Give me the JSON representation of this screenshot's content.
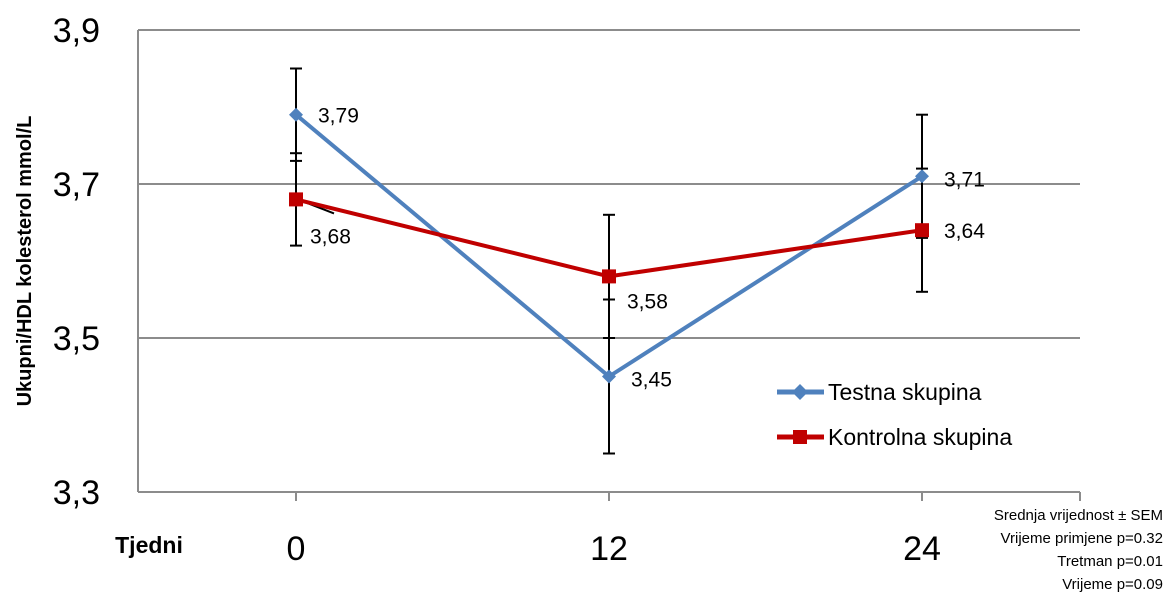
{
  "chart_data": {
    "type": "line",
    "xlabel": "Tjedni",
    "ylabel": "Ukupni/HDL kolesterol mmol/L",
    "ylim": [
      3.3,
      3.9
    ],
    "yticks": [
      "3,3",
      "3,5",
      "3,7",
      "3,9"
    ],
    "yticks_values": [
      3.3,
      3.5,
      3.7,
      3.9
    ],
    "categories": [
      "0",
      "12",
      "24"
    ],
    "grid": true,
    "legend_position": "bottom-right inside plot",
    "series": [
      {
        "name": "Testna skupina",
        "color": "#4f81bd",
        "marker": "diamond",
        "values": [
          3.79,
          3.45,
          3.71
        ],
        "labels": [
          "3,79",
          "3,45",
          "3,71"
        ],
        "error_low": [
          3.73,
          3.35,
          3.63
        ],
        "error_high": [
          3.85,
          3.55,
          3.79
        ]
      },
      {
        "name": "Kontrolna skupina",
        "color": "#c00000",
        "marker": "square",
        "values": [
          3.68,
          3.58,
          3.64
        ],
        "labels": [
          "3,68",
          "3,58",
          "3,64"
        ],
        "error_low": [
          3.62,
          3.5,
          3.56
        ],
        "error_high": [
          3.74,
          3.66,
          3.72
        ]
      }
    ],
    "notes": [
      "Srednja vrijednost ± SEM",
      "Vrijeme primjene p=0.32",
      "Tretman p=0.01",
      "Vrijeme p=0.09"
    ]
  }
}
